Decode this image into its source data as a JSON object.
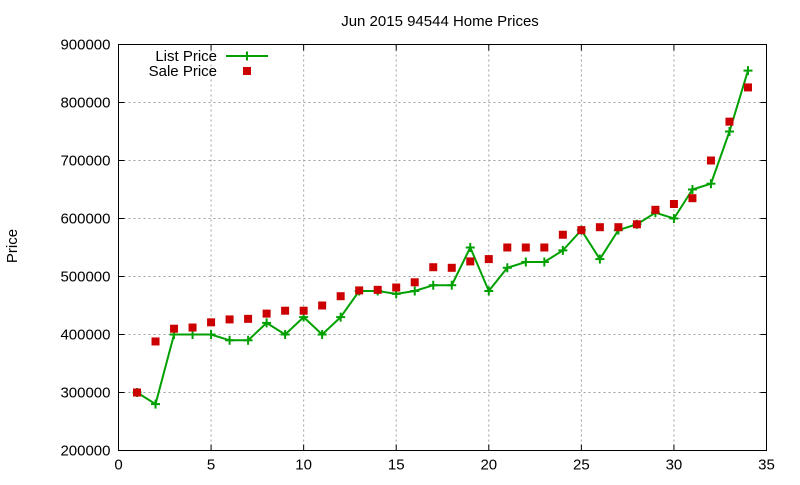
{
  "chart_data": {
    "type": "line",
    "title": "Jun 2015 94544 Home Prices",
    "xlabel": "",
    "ylabel": "Price",
    "xlim": [
      0,
      35
    ],
    "ylim": [
      200000,
      900000
    ],
    "xticks": [
      0,
      5,
      10,
      15,
      20,
      25,
      30,
      35
    ],
    "yticks": [
      200000,
      300000,
      400000,
      500000,
      600000,
      700000,
      800000,
      900000
    ],
    "grid": true,
    "legend_position": "top-left",
    "colors": {
      "list": "#00a000",
      "sale": "#cc0000"
    },
    "series": [
      {
        "name": "List Price",
        "style": "line-with-plus-markers",
        "x": [
          1,
          2,
          3,
          4,
          5,
          6,
          7,
          8,
          9,
          10,
          11,
          12,
          13,
          14,
          15,
          16,
          17,
          18,
          19,
          20,
          21,
          22,
          23,
          24,
          25,
          26,
          27,
          28,
          29,
          30,
          31,
          32,
          33,
          34
        ],
        "values": [
          300000,
          280000,
          400000,
          400000,
          400000,
          390000,
          390000,
          420000,
          400000,
          430000,
          400000,
          430000,
          475000,
          475000,
          470000,
          475000,
          485000,
          485000,
          550000,
          475000,
          515000,
          525000,
          525000,
          545000,
          580000,
          530000,
          580000,
          590000,
          610000,
          600000,
          650000,
          660000,
          750000,
          855000
        ]
      },
      {
        "name": "Sale Price",
        "style": "square-markers",
        "x": [
          1,
          2,
          3,
          4,
          5,
          6,
          7,
          8,
          9,
          10,
          11,
          12,
          13,
          14,
          15,
          16,
          17,
          18,
          19,
          20,
          21,
          22,
          23,
          24,
          25,
          26,
          27,
          28,
          29,
          30,
          31,
          32,
          33,
          34
        ],
        "values": [
          300000,
          388000,
          410000,
          412000,
          421000,
          426000,
          427000,
          436000,
          441000,
          441000,
          450000,
          466000,
          476000,
          477000,
          481000,
          490000,
          516000,
          515000,
          526000,
          530000,
          550000,
          550000,
          550000,
          572000,
          580000,
          585000,
          585000,
          590000,
          615000,
          625000,
          635000,
          700000,
          767000,
          826000
        ]
      }
    ]
  }
}
